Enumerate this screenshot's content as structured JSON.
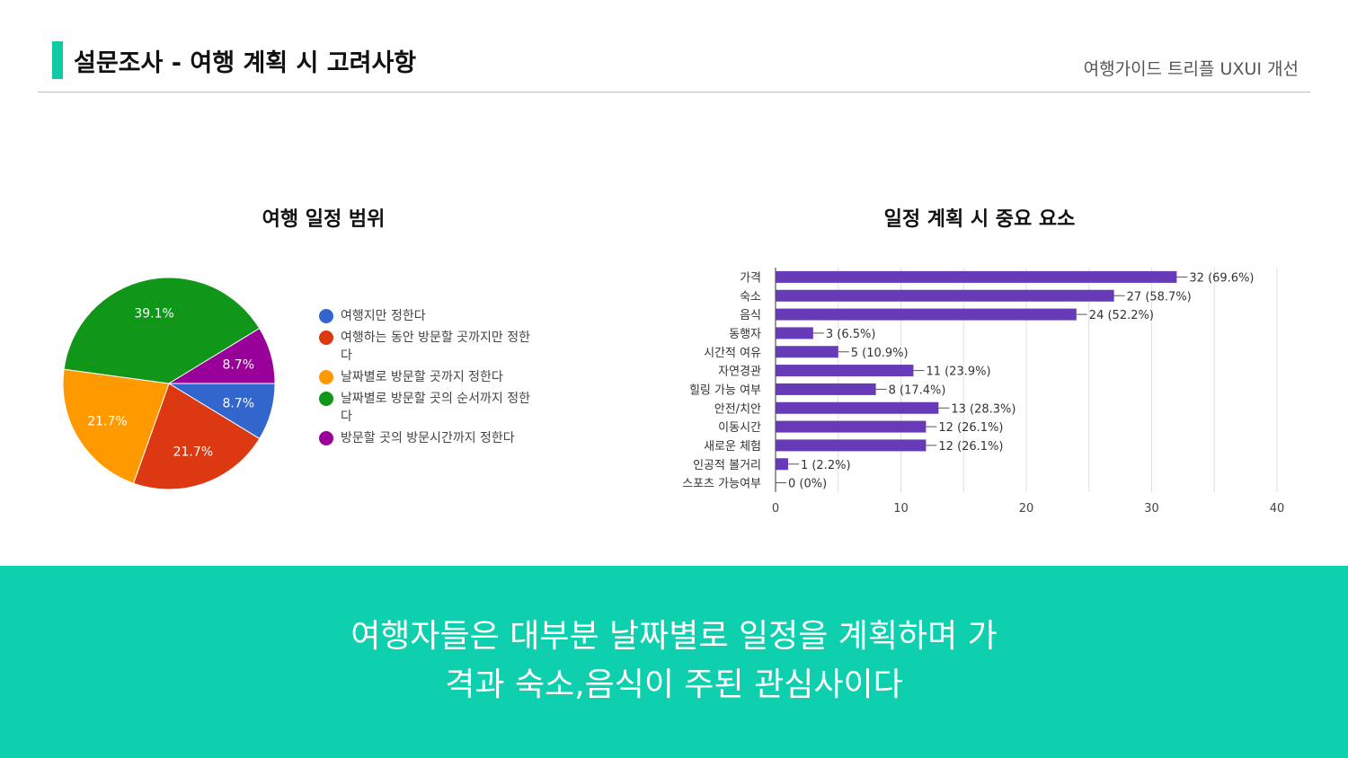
{
  "header": {
    "title": "설문조사 - 여행 계획 시 고려사항",
    "subtitle": "여행가이드 트리플 UXUI 개선"
  },
  "colors": {
    "accent": "#12c9a6",
    "banner": "#0ecfae",
    "bar": "#673ab7"
  },
  "chart_data": [
    {
      "type": "pie",
      "title": "여행 일정 범위",
      "categories": [
        "여행지만 정한다",
        "여행하는 동안 방문할 곳까지만 정한다",
        "날짜별로 방문할 곳까지 정한다",
        "날짜별로 방문할 곳의 순서까지 정한다",
        "방문할 곳의 방문시간까지 정한다"
      ],
      "legend_lines": [
        [
          "여행지만 정한다"
        ],
        [
          "여행하는 동안 방문할 곳까지만 정한",
          "다"
        ],
        [
          "날짜별로 방문할 곳까지 정한다"
        ],
        [
          "날짜별로 방문할 곳의 순서까지 정한",
          "다"
        ],
        [
          "방문할 곳의 방문시간까지 정한다"
        ]
      ],
      "values": [
        8.7,
        21.7,
        21.7,
        39.1,
        8.7
      ],
      "labels": [
        "8.7%",
        "21.7%",
        "21.7%",
        "39.1%",
        "8.7%"
      ],
      "colors": [
        "#3366cc",
        "#dc3912",
        "#ff9900",
        "#109618",
        "#990099"
      ],
      "legend_position": "right"
    },
    {
      "type": "bar",
      "orientation": "horizontal",
      "title": "일정 계획 시 중요 요소",
      "categories": [
        "가격",
        "숙소",
        "음식",
        "동행자",
        "시간적 여유",
        "자연경관",
        "힐링 가능 여부",
        "안전/치안",
        "이동시간",
        "새로운 체험",
        "인공적 볼거리",
        "스포츠 가능여부"
      ],
      "values": [
        32,
        27,
        24,
        3,
        5,
        11,
        8,
        13,
        12,
        12,
        1,
        0
      ],
      "value_labels": [
        "32 (69.6%)",
        "27 (58.7%)",
        "24 (52.2%)",
        "3 (6.5%)",
        "5 (10.9%)",
        "11 (23.9%)",
        "8 (17.4%)",
        "13 (28.3%)",
        "12 (26.1%)",
        "12 (26.1%)",
        "1 (2.2%)",
        "0 (0%)"
      ],
      "xlim": [
        0,
        40
      ],
      "xticks": [
        "0",
        "10",
        "20",
        "30",
        "40"
      ],
      "grid": true,
      "color": "#673ab7"
    }
  ],
  "banner": {
    "line1": "여행자들은 대부분 날짜별로 일정을 계획하며 가",
    "line2": "격과 숙소,음식이 주된 관심사이다"
  }
}
